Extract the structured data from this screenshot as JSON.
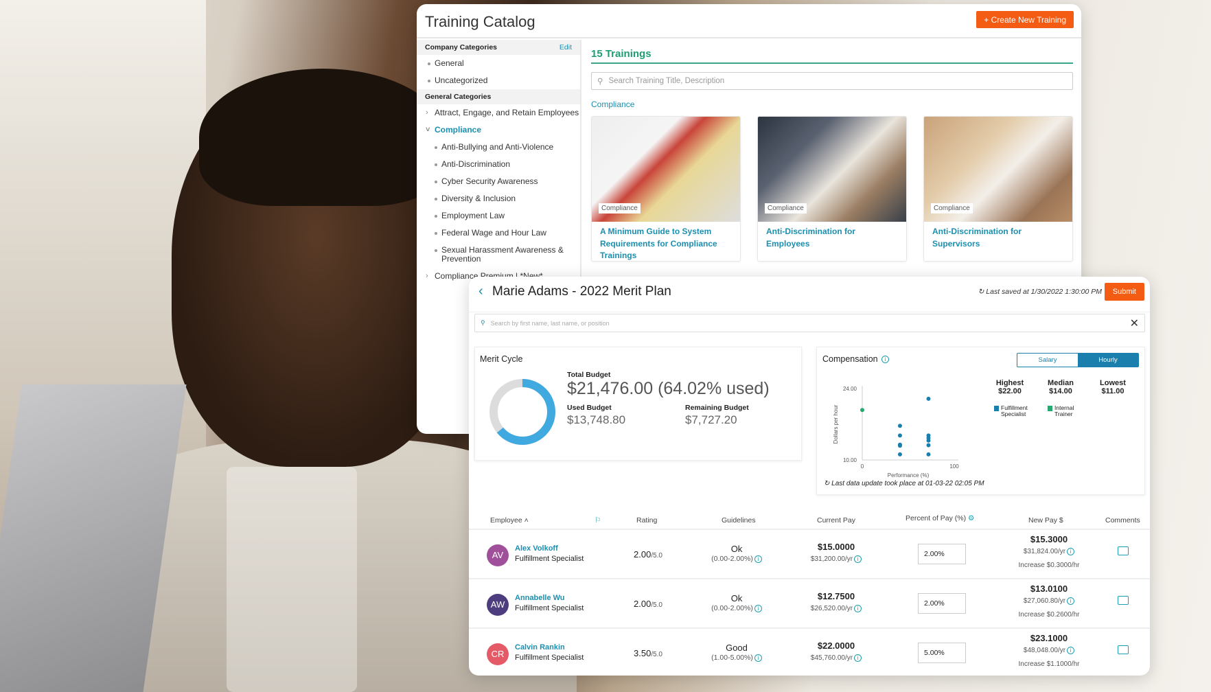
{
  "catalog": {
    "title": "Training Catalog",
    "create_button": "Create New Training",
    "sidebar": {
      "company_header": "Company Categories",
      "edit": "Edit",
      "company_items": [
        "General",
        "Uncategorized"
      ],
      "general_header": "General Categories",
      "attract": "Attract, Engage, and Retain Employees",
      "compliance": "Compliance",
      "compliance_items": [
        "Anti-Bullying and Anti-Violence",
        "Anti-Discrimination",
        "Cyber Security Awareness",
        "Diversity & Inclusion",
        "Employment Law",
        "Federal Wage and Hour Law",
        "Sexual Harassment Awareness & Prevention"
      ],
      "premium": "Compliance Premium | *New*"
    },
    "count": "15 Trainings",
    "search_placeholder": "Search Training Title, Description",
    "section": "Compliance",
    "cards": [
      {
        "tag": "Compliance",
        "title": "A Minimum Guide to System Requirements for Compliance Trainings"
      },
      {
        "tag": "Compliance",
        "title": "Anti-Discrimination for Employees"
      },
      {
        "tag": "Compliance",
        "title": "Anti-Discrimination for Supervisors"
      }
    ]
  },
  "merit": {
    "title": "Marie Adams - 2022 Merit Plan",
    "last_saved": "Last saved at 1/30/2022 1:30:00 PM",
    "submit": "Submit",
    "search_placeholder": "Search by first name, last name, or position",
    "cycle": {
      "title": "Merit Cycle",
      "total_label": "Total Budget",
      "total": "$21,476.00 (64.02% used)",
      "used_fraction": 0.6402,
      "used_label": "Used Budget",
      "used": "$13,748.80",
      "remaining_label": "Remaining Budget",
      "remaining": "$7,727.20",
      "colors": {
        "used": "#3fa9e0",
        "remaining": "#dcdcdc"
      }
    },
    "compensation": {
      "title": "Compensation",
      "toggle": [
        "Salary",
        "Hourly"
      ],
      "active_toggle": "Hourly",
      "stats": [
        {
          "label": "Highest",
          "value": "$22.00"
        },
        {
          "label": "Median",
          "value": "$14.00"
        },
        {
          "label": "Lowest",
          "value": "$11.00"
        }
      ],
      "legend": [
        {
          "label": "Fulfillment Specialist",
          "color": "#1b7fae"
        },
        {
          "label": "Internal Trainer",
          "color": "#27a86e"
        }
      ],
      "footer": "Last data update took place at 01-03-22 02:05 PM"
    },
    "chart_data": {
      "type": "scatter",
      "xlabel": "Performance (%)",
      "ylabel": "Dollars per hour",
      "xlim": [
        0,
        100
      ],
      "ylim": [
        10,
        24
      ],
      "xticks": [
        "0",
        "100"
      ],
      "yticks": [
        "10.00",
        "24.00"
      ],
      "grid": false,
      "legend": "right",
      "series": [
        {
          "name": "Fulfillment Specialist",
          "color": "#1b7fae",
          "points": [
            [
              41,
              16.7
            ],
            [
              41,
              14.8
            ],
            [
              41,
              13
            ],
            [
              41,
              12.8
            ],
            [
              41,
              11.1
            ],
            [
              72,
              22
            ],
            [
              72,
              14.8
            ],
            [
              72,
              14.3
            ],
            [
              72,
              13.8
            ],
            [
              72,
              12.9
            ],
            [
              72,
              11.1
            ]
          ]
        },
        {
          "name": "Internal Trainer",
          "color": "#27a86e",
          "points": [
            [
              0,
              19.8
            ]
          ]
        }
      ]
    },
    "table": {
      "headers": [
        "Employee",
        "Rating",
        "Guidelines",
        "Current Pay",
        "Percent of Pay (%)",
        "New Pay $",
        "Comments"
      ],
      "rows": [
        {
          "initials": "AV",
          "color": "#a0509a",
          "name": "Alex Volkoff",
          "position": "Fulfillment Specialist",
          "rating": "2.00",
          "rating_max": "/5.0",
          "guideline": "Ok",
          "range": "(0.00-2.00%)",
          "pay": "$15.0000",
          "pay_yr": "$31,200.00/yr",
          "percent": "2.00%",
          "new_pay": "$15.3000",
          "new_yr": "$31,824.00/yr",
          "increase": "Increase $0.3000/hr"
        },
        {
          "initials": "AW",
          "color": "#4e3d7e",
          "name": "Annabelle Wu",
          "position": "Fulfillment Specialist",
          "rating": "2.00",
          "rating_max": "/5.0",
          "guideline": "Ok",
          "range": "(0.00-2.00%)",
          "pay": "$12.7500",
          "pay_yr": "$26,520.00/yr",
          "percent": "2.00%",
          "new_pay": "$13.0100",
          "new_yr": "$27,060.80/yr",
          "increase": "Increase $0.2600/hr"
        },
        {
          "initials": "CR",
          "color": "#e45a67",
          "name": "Calvin Rankin",
          "position": "Fulfillment Specialist",
          "rating": "3.50",
          "rating_max": "/5.0",
          "guideline": "Good",
          "range": "(1.00-5.00%)",
          "pay": "$22.0000",
          "pay_yr": "$45,760.00/yr",
          "percent": "5.00%",
          "new_pay": "$23.1000",
          "new_yr": "$48,048.00/yr",
          "increase": "Increase $1.1000/hr"
        }
      ]
    }
  }
}
